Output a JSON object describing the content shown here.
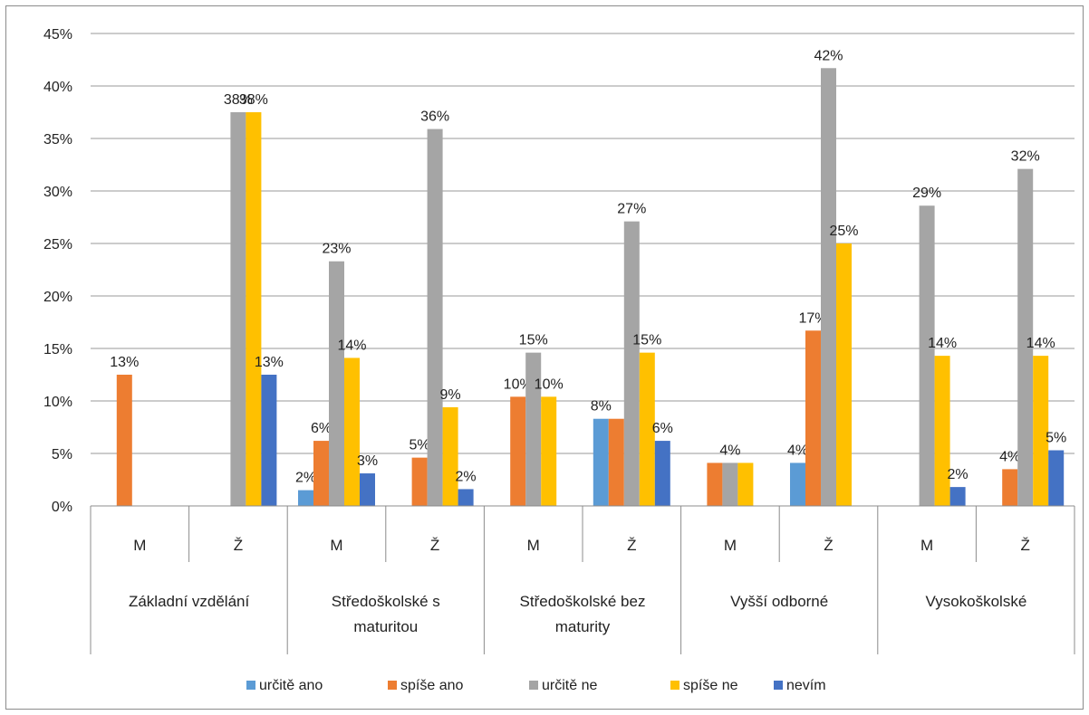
{
  "chart_data": {
    "type": "bar",
    "title": "",
    "xlabel": "",
    "ylabel": "",
    "ylim": [
      0,
      45
    ],
    "y_ticks": [
      "0%",
      "5%",
      "10%",
      "15%",
      "20%",
      "25%",
      "30%",
      "35%",
      "40%",
      "45%"
    ],
    "y_tick_values": [
      0,
      5,
      10,
      15,
      20,
      25,
      30,
      35,
      40,
      45
    ],
    "grid": true,
    "legend_position": "bottom",
    "groups": [
      {
        "label": "Základní vzdělání",
        "lines": [
          "Základní vzdělání"
        ]
      },
      {
        "label": "Středoškolské s maturitou",
        "lines": [
          "Středoškolské s",
          "maturitou"
        ]
      },
      {
        "label": "Středoškolské bez maturity",
        "lines": [
          "Středoškolské bez",
          "maturity"
        ]
      },
      {
        "label": "Vyšší odborné",
        "lines": [
          "Vyšší odborné"
        ]
      },
      {
        "label": "Vysokoškolské",
        "lines": [
          "Vysokoškolské"
        ]
      }
    ],
    "categories": [
      "M",
      "Ž",
      "M",
      "Ž",
      "M",
      "Ž",
      "M",
      "Ž",
      "M",
      "Ž"
    ],
    "series": [
      {
        "name": "určitě ano",
        "color": "#5B9BD5",
        "values": [
          0,
          0,
          1.5,
          0,
          0,
          8.3,
          0,
          4.1,
          0,
          0
        ],
        "labels": [
          "",
          "",
          "2%",
          "",
          "",
          "8%",
          "",
          "4%",
          "",
          ""
        ]
      },
      {
        "name": "spíše ano",
        "color": "#ED7D31",
        "values": [
          12.5,
          0,
          6.2,
          4.6,
          10.4,
          8.3,
          4.1,
          16.7,
          0,
          3.5
        ],
        "labels": [
          "13%",
          "",
          "6%",
          "5%",
          "10%",
          "",
          "",
          "17%",
          "",
          "4%"
        ]
      },
      {
        "name": "určitě ne",
        "color": "#A5A5A5",
        "values": [
          0,
          37.5,
          23.3,
          35.9,
          14.6,
          27.1,
          4.1,
          41.7,
          28.6,
          32.1
        ],
        "labels": [
          "",
          "38%",
          "23%",
          "36%",
          "15%",
          "27%",
          "4%",
          "42%",
          "29%",
          "32%"
        ]
      },
      {
        "name": "spíše ne",
        "color": "#FFC000",
        "values": [
          0,
          37.5,
          14.1,
          9.4,
          10.4,
          14.6,
          4.1,
          25.0,
          14.3,
          14.3
        ],
        "labels": [
          "",
          "38%",
          "14%",
          "9%",
          "10%",
          "15%",
          "",
          "25%",
          "14%",
          "14%"
        ]
      },
      {
        "name": "nevím",
        "color": "#4472C4",
        "values": [
          0,
          12.5,
          3.1,
          1.6,
          0,
          6.2,
          0,
          0,
          1.8,
          5.3
        ],
        "labels": [
          "",
          "13%",
          "3%",
          "2%",
          "",
          "6%",
          "",
          "",
          "2%",
          "5%"
        ]
      }
    ]
  }
}
